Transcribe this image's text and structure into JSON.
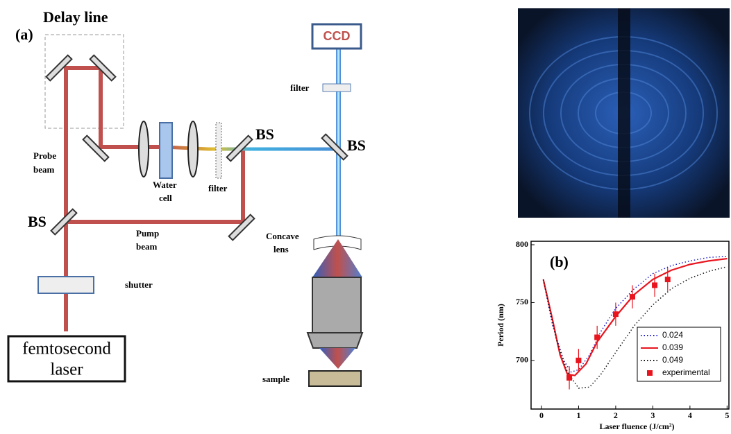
{
  "diagram": {
    "panel_label": "(a)",
    "delay_line": "Delay line",
    "probe_beam": [
      "Probe",
      "beam"
    ],
    "bs_left": "BS",
    "pump_beam": [
      "Pump",
      "beam"
    ],
    "water_cell": [
      "Water",
      "cell"
    ],
    "filter_mid": "filter",
    "bs_mid": "BS",
    "bs_right": "BS",
    "ccd": "CCD",
    "filter_top": "filter",
    "concave_lens": [
      "Concave",
      "lens"
    ],
    "shutter": "shutter",
    "laser": [
      "femtosecond",
      "laser"
    ],
    "sample": "sample"
  },
  "chart_data": {
    "type": "line",
    "panel_label": "(b)",
    "xlabel": "Laser fluence (J/cm²)",
    "ylabel": "Period (nm)",
    "xlim": [
      -0.28,
      5.05
    ],
    "ylim": [
      658,
      803
    ],
    "xticks": [
      0,
      1,
      2,
      3,
      4,
      5
    ],
    "yticks": [
      700,
      750,
      800
    ],
    "legend": "lower right",
    "series": [
      {
        "name": "0.024",
        "color": "#1a1acc",
        "dash": "dotted",
        "x": [
          0.05,
          0.3,
          0.6,
          0.8,
          1.0,
          1.3,
          1.6,
          2.0,
          2.5,
          3.0,
          3.5,
          4.0,
          4.5,
          5.0
        ],
        "values": [
          770,
          730,
          700,
          690,
          692,
          705,
          725,
          745,
          762,
          775,
          782,
          786,
          789,
          790
        ]
      },
      {
        "name": "0.039",
        "color": "#e8141e",
        "dash": "solid",
        "x": [
          0.05,
          0.3,
          0.5,
          0.7,
          0.9,
          1.2,
          1.5,
          2.0,
          2.5,
          3.0,
          3.5,
          4.0,
          4.5,
          5.0
        ],
        "values": [
          770,
          735,
          705,
          688,
          687,
          697,
          716,
          738,
          757,
          770,
          778,
          783,
          786,
          788
        ]
      },
      {
        "name": "0.049",
        "color": "#111111",
        "dash": "dotted",
        "x": [
          0.05,
          0.4,
          0.7,
          1.0,
          1.3,
          1.6,
          2.0,
          2.5,
          3.0,
          3.5,
          4.0,
          4.5,
          5.0
        ],
        "values": [
          770,
          718,
          690,
          676,
          677,
          688,
          707,
          730,
          748,
          762,
          771,
          777,
          781
        ]
      },
      {
        "name": "experimental",
        "color": "#e8141e",
        "marker": "square",
        "x": [
          0.75,
          1.0,
          1.5,
          2.0,
          2.45,
          3.05,
          3.4
        ],
        "values": [
          685,
          700,
          720,
          740,
          755,
          765,
          770
        ],
        "errors": [
          10,
          10,
          10,
          10,
          10,
          10,
          10
        ]
      }
    ]
  }
}
